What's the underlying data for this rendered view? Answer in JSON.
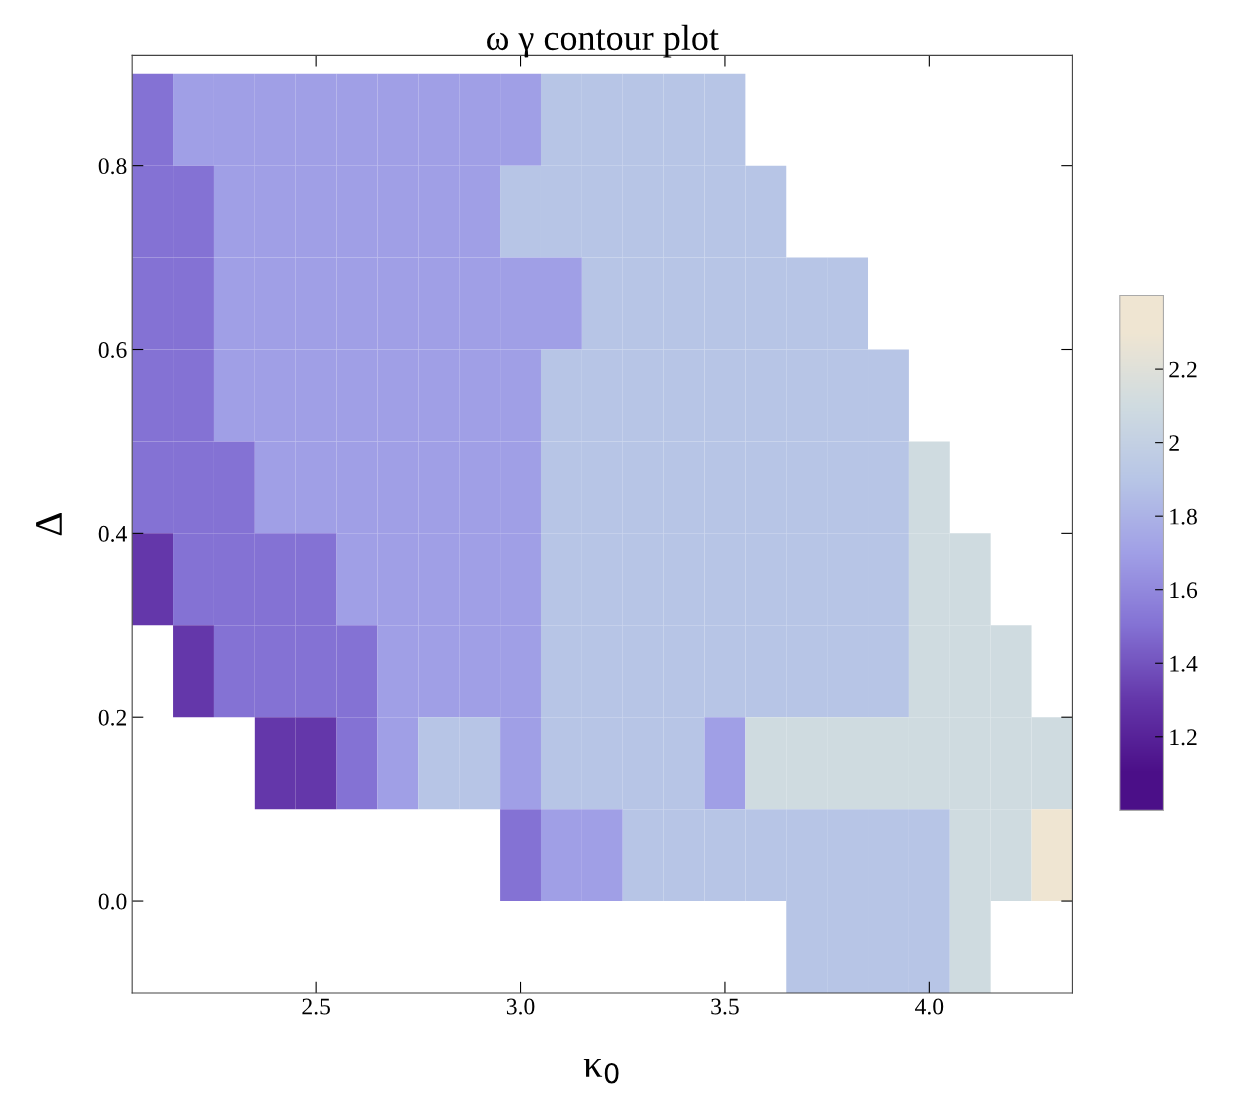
{
  "chart_data": {
    "type": "heatmap",
    "title": "ω γ contour plot",
    "xlabel": "κ$_{0}$",
    "ylabel": "Δ",
    "x": [
      2.1,
      2.2,
      2.3,
      2.4,
      2.5,
      2.6,
      2.7,
      2.8,
      2.9,
      3.0,
      3.1,
      3.2,
      3.3,
      3.4,
      3.5,
      3.6,
      3.7,
      3.8,
      3.9,
      4.0,
      4.1,
      4.2,
      4.3
    ],
    "y": [
      0.85,
      0.75,
      0.65,
      0.55,
      0.45,
      0.35,
      0.25,
      0.15,
      0.05,
      -0.05
    ],
    "cells": [
      [
        1.5,
        1.7,
        1.7,
        1.7,
        1.7,
        1.7,
        1.7,
        1.7,
        1.7,
        1.7,
        1.9,
        1.9,
        1.9,
        1.9,
        1.9,
        null,
        null,
        null,
        null,
        null,
        null,
        null,
        null
      ],
      [
        1.5,
        1.5,
        1.7,
        1.7,
        1.7,
        1.7,
        1.7,
        1.7,
        1.7,
        1.9,
        1.9,
        1.9,
        1.9,
        1.9,
        1.9,
        1.9,
        null,
        null,
        null,
        null,
        null,
        null,
        null
      ],
      [
        1.5,
        1.5,
        1.7,
        1.7,
        1.7,
        1.7,
        1.7,
        1.7,
        1.7,
        1.7,
        1.7,
        1.9,
        1.9,
        1.9,
        1.9,
        1.9,
        1.9,
        1.9,
        null,
        null,
        null,
        null,
        null
      ],
      [
        1.5,
        1.5,
        1.7,
        1.7,
        1.7,
        1.7,
        1.7,
        1.7,
        1.7,
        1.7,
        1.9,
        1.9,
        1.9,
        1.9,
        1.9,
        1.9,
        1.9,
        1.9,
        1.9,
        null,
        null,
        null,
        null
      ],
      [
        1.5,
        1.5,
        1.5,
        1.7,
        1.7,
        1.7,
        1.7,
        1.7,
        1.7,
        1.7,
        1.9,
        1.9,
        1.9,
        1.9,
        1.9,
        1.9,
        1.9,
        1.9,
        1.9,
        2.1,
        null,
        null,
        null
      ],
      [
        1.3,
        1.5,
        1.5,
        1.5,
        1.5,
        1.7,
        1.7,
        1.7,
        1.7,
        1.7,
        1.9,
        1.9,
        1.9,
        1.9,
        1.9,
        1.9,
        1.9,
        1.9,
        1.9,
        2.1,
        2.1,
        null,
        null
      ],
      [
        null,
        1.3,
        1.5,
        1.5,
        1.5,
        1.5,
        1.7,
        1.7,
        1.7,
        1.7,
        1.9,
        1.9,
        1.9,
        1.9,
        1.9,
        1.9,
        1.9,
        1.9,
        1.9,
        2.1,
        2.1,
        2.1,
        null
      ],
      [
        null,
        null,
        null,
        1.3,
        1.3,
        1.5,
        1.7,
        1.9,
        1.9,
        1.7,
        1.9,
        1.9,
        1.9,
        1.9,
        1.7,
        2.1,
        2.1,
        2.1,
        2.1,
        2.1,
        2.1,
        2.1,
        2.1
      ],
      [
        null,
        null,
        null,
        null,
        null,
        null,
        null,
        null,
        null,
        1.5,
        1.7,
        1.7,
        1.9,
        1.9,
        1.9,
        1.9,
        1.9,
        1.9,
        1.9,
        1.9,
        2.1,
        2.1,
        2.3
      ],
      [
        null,
        null,
        null,
        null,
        null,
        null,
        null,
        null,
        null,
        null,
        null,
        null,
        null,
        null,
        null,
        null,
        1.9,
        1.9,
        1.9,
        1.9,
        2.1,
        null,
        null
      ]
    ],
    "colors": [
      "#4b0f88",
      "#6437aa",
      "#8472d4",
      "#a09fe6",
      "#b7c5e6",
      "#cfdbe0",
      "#efe5d2"
    ],
    "clim": [
      1.0,
      2.4
    ],
    "cticks": [
      1.2,
      1.4,
      1.6,
      1.8,
      {
        "value": 2.0,
        "label": "2"
      },
      2.2
    ],
    "xlim": [
      2.05,
      4.35
    ],
    "xticks": [
      2.5,
      {
        "value": 3,
        "label": "3.0"
      },
      3.5,
      {
        "value": 4,
        "label": "4.0"
      }
    ],
    "ylim": [
      -0.1,
      0.92
    ],
    "yticks": [
      {
        "value": 0,
        "label": "0.0"
      },
      0.2,
      0.4,
      0.6,
      0.8
    ],
    "grid": false
  }
}
